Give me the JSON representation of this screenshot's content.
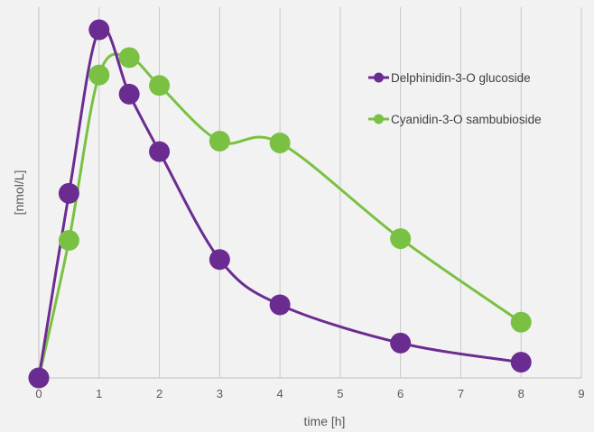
{
  "chart_data": {
    "type": "line",
    "title": "",
    "xlabel": "time [h]",
    "ylabel": "[nmol/L]",
    "xlim": [
      0,
      9
    ],
    "x_ticks": [
      0,
      1,
      2,
      3,
      4,
      5,
      6,
      7,
      8,
      9
    ],
    "y_axis_tick_labels_shown": false,
    "grid": "vertical",
    "legend_position": "top-right",
    "series": [
      {
        "name": "Delphinidin-3-O glucoside",
        "color": "#6b2c91",
        "smooth": true,
        "x": [
          0,
          0.5,
          1,
          1.5,
          2,
          3,
          4,
          6,
          8
        ],
        "y": [
          0,
          0.53,
          1.0,
          0.815,
          0.65,
          0.34,
          0.21,
          0.1,
          0.045
        ]
      },
      {
        "name": "Cyanidin-3-O sambubioside",
        "color": "#7ac143",
        "smooth": true,
        "x": [
          0,
          0.5,
          1,
          1.5,
          2,
          3,
          4,
          6,
          8
        ],
        "y": [
          0,
          0.395,
          0.87,
          0.92,
          0.84,
          0.68,
          0.675,
          0.4,
          0.16
        ]
      }
    ]
  }
}
